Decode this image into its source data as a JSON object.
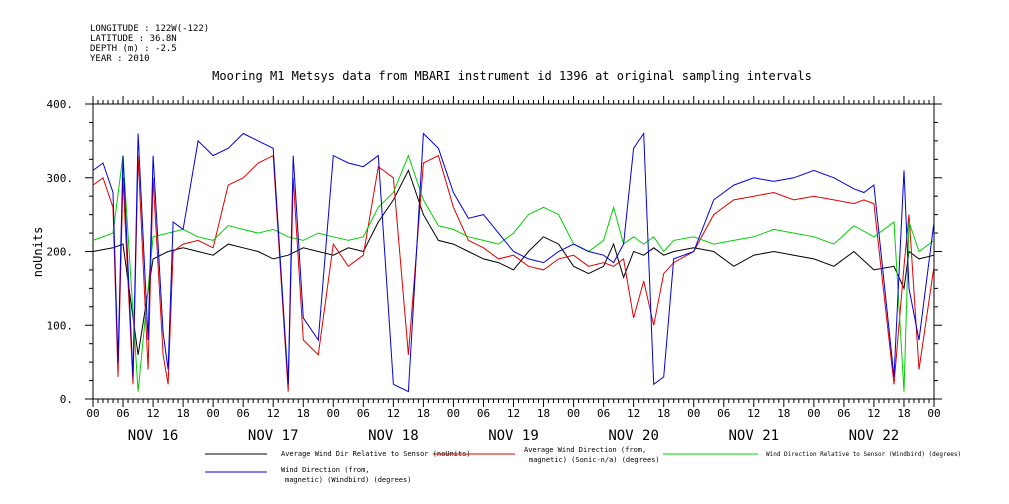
{
  "header": {
    "lines": [
      "LONGITUDE : 122W(-122)",
      "LATITUDE : 36.8N",
      "DEPTH (m) : -2.5",
      "YEAR : 2010"
    ]
  },
  "chart_data": {
    "type": "line",
    "title": "Mooring M1 Metsys data from MBARI instrument id 1396 at original sampling intervals",
    "ylabel": "noUnits",
    "xlabel": "",
    "x_range_hours": [
      0,
      168
    ],
    "ylim": [
      0,
      400
    ],
    "y_ticks": [
      0,
      100,
      200,
      300,
      400
    ],
    "y_tick_labels": [
      "0.",
      "100.",
      "200.",
      "300.",
      "400."
    ],
    "x_tick_labels": [
      "00",
      "06",
      "12",
      "18",
      "00",
      "06",
      "12",
      "18",
      "00",
      "06",
      "12",
      "18",
      "00",
      "06",
      "12",
      "18",
      "00",
      "06",
      "12",
      "18",
      "00",
      "06",
      "12",
      "18",
      "00",
      "06",
      "12",
      "18",
      "00"
    ],
    "day_labels": [
      "NOV 16",
      "NOV 17",
      "NOV 18",
      "NOV 19",
      "NOV 20",
      "NOV 21",
      "NOV 22"
    ],
    "grid": false,
    "legend_position": "bottom",
    "series": [
      {
        "name": "Average Wind Dir Relative to Sensor (noUnits)",
        "color": "#000000",
        "x": [
          0,
          4,
          6,
          9,
          12,
          15,
          18,
          21,
          24,
          27,
          30,
          33,
          36,
          39,
          42,
          45,
          48,
          51,
          54,
          57,
          60,
          63,
          66,
          69,
          72,
          75,
          78,
          81,
          84,
          87,
          90,
          93,
          96,
          99,
          102,
          104,
          106,
          108,
          110,
          112,
          114,
          116,
          120,
          124,
          128,
          132,
          136,
          140,
          144,
          148,
          152,
          156,
          160,
          162,
          163,
          165,
          168
        ],
        "y": [
          200,
          205,
          210,
          60,
          190,
          200,
          205,
          200,
          195,
          210,
          205,
          200,
          190,
          195,
          205,
          200,
          195,
          205,
          200,
          240,
          270,
          310,
          250,
          215,
          210,
          200,
          190,
          185,
          175,
          200,
          220,
          210,
          180,
          170,
          180,
          210,
          165,
          200,
          195,
          205,
          195,
          200,
          205,
          200,
          180,
          195,
          200,
          195,
          190,
          180,
          200,
          175,
          180,
          150,
          200,
          190,
          195
        ]
      },
      {
        "name": "Average Wind Direction (from, magnetic) (Sonic-n/a) (degrees)",
        "color": "#e00000",
        "x": [
          0,
          2,
          4,
          5,
          6,
          8,
          9,
          11,
          12,
          14,
          15,
          16,
          18,
          21,
          24,
          27,
          30,
          33,
          36,
          39,
          40,
          42,
          45,
          48,
          51,
          54,
          57,
          60,
          63,
          66,
          69,
          72,
          75,
          78,
          81,
          84,
          87,
          90,
          93,
          96,
          99,
          102,
          104,
          106,
          108,
          110,
          112,
          114,
          116,
          120,
          124,
          128,
          132,
          136,
          140,
          144,
          148,
          152,
          154,
          156,
          160,
          162,
          163,
          165,
          168
        ],
        "y": [
          290,
          300,
          260,
          30,
          300,
          20,
          330,
          40,
          300,
          60,
          20,
          200,
          210,
          215,
          205,
          290,
          300,
          320,
          330,
          10,
          300,
          80,
          60,
          210,
          180,
          195,
          315,
          300,
          60,
          320,
          330,
          260,
          215,
          205,
          190,
          195,
          180,
          175,
          190,
          195,
          180,
          185,
          180,
          190,
          110,
          160,
          100,
          170,
          185,
          200,
          250,
          270,
          275,
          280,
          270,
          275,
          270,
          265,
          270,
          265,
          20,
          180,
          250,
          40,
          180
        ]
      },
      {
        "name": "Wind Direction Relative to Sensor (Windbird) (degrees)",
        "color": "#00d000",
        "x": [
          0,
          4,
          6,
          9,
          12,
          15,
          18,
          21,
          24,
          27,
          30,
          33,
          36,
          39,
          42,
          45,
          48,
          51,
          54,
          57,
          60,
          63,
          66,
          69,
          72,
          75,
          78,
          81,
          84,
          87,
          90,
          93,
          96,
          99,
          102,
          104,
          106,
          108,
          110,
          112,
          114,
          116,
          120,
          124,
          128,
          132,
          136,
          140,
          144,
          148,
          152,
          156,
          160,
          162,
          163,
          165,
          168
        ],
        "y": [
          215,
          225,
          330,
          10,
          220,
          225,
          230,
          220,
          215,
          235,
          230,
          225,
          230,
          220,
          215,
          225,
          220,
          215,
          220,
          260,
          280,
          330,
          270,
          235,
          230,
          220,
          215,
          210,
          225,
          250,
          260,
          250,
          210,
          200,
          215,
          260,
          210,
          220,
          210,
          220,
          200,
          215,
          220,
          210,
          215,
          220,
          230,
          225,
          220,
          210,
          235,
          220,
          240,
          10,
          240,
          200,
          215
        ]
      },
      {
        "name": "Wind Direction (from, magnetic) (Windbird) (degrees)",
        "color": "#0000e0",
        "x": [
          0,
          2,
          4,
          5,
          6,
          8,
          9,
          11,
          12,
          14,
          15,
          16,
          18,
          21,
          24,
          27,
          30,
          33,
          36,
          39,
          40,
          42,
          45,
          48,
          51,
          54,
          57,
          60,
          63,
          66,
          69,
          72,
          75,
          78,
          81,
          84,
          87,
          90,
          93,
          96,
          99,
          102,
          104,
          106,
          108,
          110,
          112,
          114,
          116,
          120,
          124,
          128,
          132,
          136,
          140,
          144,
          148,
          152,
          154,
          156,
          160,
          162,
          163,
          165,
          168
        ],
        "y": [
          310,
          320,
          280,
          50,
          330,
          30,
          360,
          80,
          330,
          90,
          40,
          240,
          230,
          350,
          330,
          340,
          360,
          350,
          340,
          20,
          330,
          110,
          80,
          330,
          320,
          315,
          330,
          20,
          10,
          360,
          340,
          280,
          245,
          250,
          225,
          200,
          190,
          185,
          200,
          210,
          200,
          195,
          185,
          210,
          340,
          360,
          20,
          30,
          190,
          200,
          270,
          290,
          300,
          295,
          300,
          310,
          300,
          285,
          280,
          290,
          30,
          310,
          150,
          80,
          240
        ]
      }
    ]
  }
}
